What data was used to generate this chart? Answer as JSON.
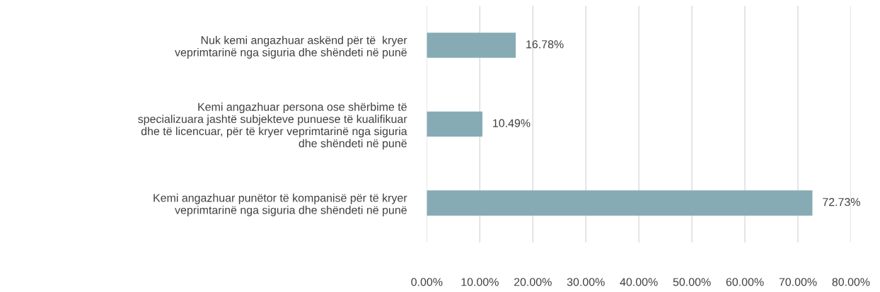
{
  "chart_data": {
    "type": "bar",
    "orientation": "horizontal",
    "categories": [
      "Nuk kemi angazhuar askënd për të  kryer\nveprimtarinë nga siguria dhe shëndeti në punë",
      "Kemi angazhuar persona ose shërbime të\nspecializuara jashtë subjekteve punuese të kualifikuar\ndhe të licencuar, për të kryer veprimtarinë nga siguria\ndhe shëndeti në punë",
      "Kemi angazhuar punëtor të kompanisë për të kryer\nveprimtarinë nga siguria dhe shëndeti në punë"
    ],
    "values": [
      16.78,
      10.49,
      72.73
    ],
    "value_labels": [
      "16.78%",
      "10.49%",
      "72.73%"
    ],
    "color": "#86abb5",
    "xlim": [
      0,
      80
    ],
    "xticks": [
      {
        "value": 0,
        "label": "0.00%"
      },
      {
        "value": 10,
        "label": "10.00%"
      },
      {
        "value": 20,
        "label": "20.00%"
      },
      {
        "value": 30,
        "label": "30.00%"
      },
      {
        "value": 40,
        "label": "40.00%"
      },
      {
        "value": 50,
        "label": "50.00%"
      },
      {
        "value": 60,
        "label": "60.00%"
      },
      {
        "value": 70,
        "label": "70.00%"
      },
      {
        "value": 80,
        "label": "80.00%"
      }
    ],
    "grid": "x"
  }
}
